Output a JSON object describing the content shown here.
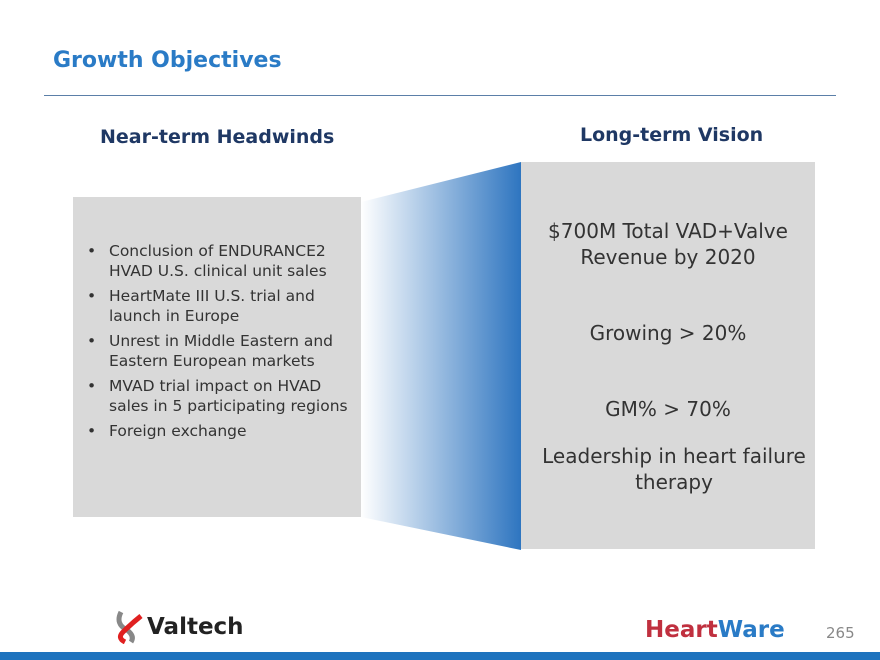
{
  "title": "Growth Objectives",
  "left": {
    "heading": "Near-term Headwinds",
    "items": [
      "Conclusion of ENDURANCE2 HVAD U.S. clinical unit sales",
      "HeartMate III U.S. trial and launch in Europe",
      "Unrest in Middle Eastern and Eastern European markets",
      "MVAD trial impact on HVAD sales in 5 participating regions",
      "Foreign exchange"
    ]
  },
  "right": {
    "heading": "Long-term Vision",
    "items": [
      "$700M Total VAD+Valve Revenue by 2020",
      "Growing > 20%",
      "GM% > 70%",
      "Leadership in heart failure therapy"
    ]
  },
  "footer": {
    "logo_left": "Valtech",
    "logo_right_a": "Heart",
    "logo_right_b": "Ware",
    "page": "265"
  },
  "colors": {
    "accent": "#2a7bc6",
    "heart": "#c0303f",
    "ware": "#2a7bc6"
  }
}
